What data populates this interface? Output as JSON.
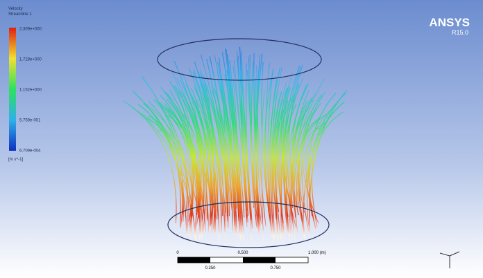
{
  "legend": {
    "title": "Velocity",
    "subtitle": "Streamline 1",
    "labels": [
      "2.309e+000",
      "1.728e+000",
      "1.152e+000",
      "5.759e-001",
      "6.709e-004"
    ],
    "unit": "[m s^-1]"
  },
  "brand": {
    "name": "ANSYS",
    "version": "R15.0"
  },
  "scale_bar": {
    "top_labels": [
      "0",
      "0.500",
      "1.000 (m)"
    ],
    "bottom_labels": [
      "0.250",
      "0.750"
    ]
  }
}
